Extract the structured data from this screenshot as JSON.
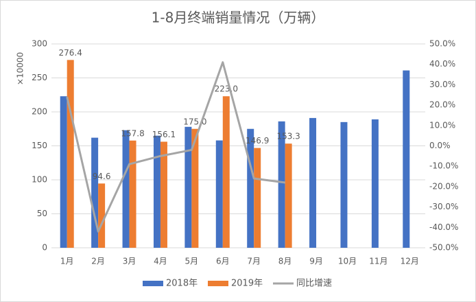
{
  "chart_data": {
    "type": "bar_line",
    "title": "1-8月终端销量情况（万辆）",
    "ylabel": "×10000",
    "categories": [
      "1月",
      "2月",
      "3月",
      "4月",
      "5月",
      "6月",
      "7月",
      "8月",
      "9月",
      "10月",
      "11月",
      "12月"
    ],
    "series": [
      {
        "name": "2018年",
        "type": "bar",
        "color": "#4472c4",
        "values": [
          223,
          162,
          173,
          165,
          178,
          158,
          175,
          186,
          191,
          185,
          189,
          261
        ]
      },
      {
        "name": "2019年",
        "type": "bar",
        "color": "#ed7d31",
        "values": [
          276.4,
          94.6,
          157.8,
          156.1,
          175.0,
          223.0,
          146.9,
          153.3,
          null,
          null,
          null,
          null
        ],
        "value_labels": [
          "276.4",
          "94.6",
          "157.8",
          "156.1",
          "175.0",
          "223.0",
          "146.9",
          "153.3",
          null,
          null,
          null,
          null
        ]
      },
      {
        "name": "同比增速",
        "type": "line",
        "axis": "y2",
        "color": "#a5a5a5",
        "values": [
          24,
          -42,
          -9,
          -5,
          -2,
          41,
          -16,
          -18,
          null,
          null,
          null,
          null
        ]
      }
    ],
    "ylim": [
      0,
      300
    ],
    "yticks": [
      0,
      50,
      100,
      150,
      200,
      250,
      300
    ],
    "y2lim": [
      -50,
      50
    ],
    "y2ticks": [
      {
        "value": -50,
        "label": "-50.0%"
      },
      {
        "value": -40,
        "label": "-40.0%"
      },
      {
        "value": -30,
        "label": "-30.0%"
      },
      {
        "value": -20,
        "label": "-20.0%"
      },
      {
        "value": -10,
        "label": "-10.0%"
      },
      {
        "value": 0,
        "label": "0.0%"
      },
      {
        "value": 10,
        "label": "10.0%"
      },
      {
        "value": 20,
        "label": "20.0%"
      },
      {
        "value": 30,
        "label": "30.0%"
      },
      {
        "value": 40,
        "label": "40.0%"
      },
      {
        "value": 50,
        "label": "50.0%"
      }
    ],
    "grid": true,
    "legend": "bottom"
  }
}
